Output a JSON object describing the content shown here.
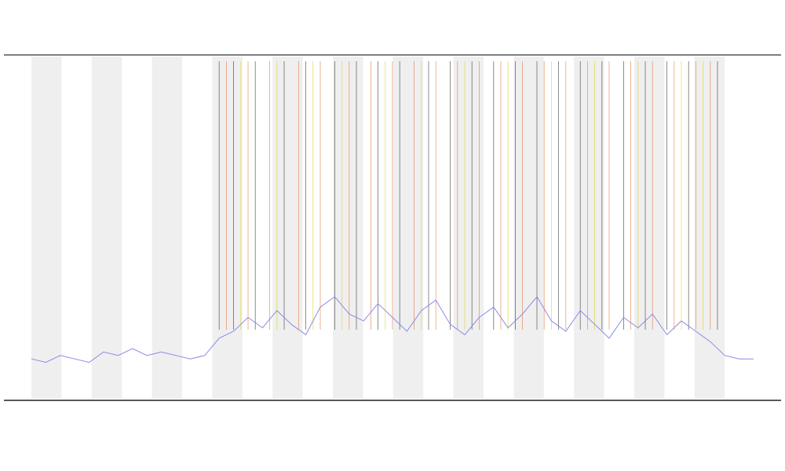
{
  "chart_data": {
    "type": "line",
    "x": [
      0,
      2,
      4,
      6,
      8,
      10,
      12,
      14,
      16,
      18,
      20,
      22,
      24,
      26,
      28,
      30,
      32,
      34,
      36,
      38,
      40,
      42,
      44,
      46,
      48,
      50,
      52,
      54,
      56,
      58,
      60,
      62,
      64,
      66,
      68,
      70,
      72,
      74,
      76,
      78,
      80,
      82,
      84,
      86,
      88,
      90,
      92,
      94,
      96,
      98,
      100
    ],
    "series": [
      {
        "color": "#8a8ae8",
        "values": [
          12,
          11,
          13,
          12,
          11,
          14,
          13,
          15,
          13,
          14,
          13,
          12,
          13,
          18,
          20,
          24,
          21,
          26,
          22,
          19,
          27,
          30,
          25,
          23,
          28,
          24,
          20,
          26,
          29,
          22,
          19,
          24,
          27,
          21,
          25,
          30,
          23,
          20,
          26,
          22,
          18,
          24,
          21,
          25,
          19,
          23,
          20,
          17,
          13,
          12,
          12
        ]
      }
    ],
    "events": [
      {
        "color": "#e8743b",
        "x": [
          27,
          30,
          33,
          37,
          40,
          44,
          47,
          50,
          53,
          56,
          59,
          62,
          65,
          68,
          71,
          74,
          77,
          80,
          83,
          86,
          89,
          92,
          94
        ]
      },
      {
        "color": "#333333",
        "x": [
          26,
          28,
          31,
          35,
          38,
          42,
          45,
          48,
          51,
          55,
          58,
          61,
          64,
          67,
          70,
          73,
          76,
          79,
          82,
          85,
          88,
          91,
          95
        ]
      },
      {
        "color": "#e0d020",
        "x": [
          29,
          34,
          39,
          43,
          49,
          54,
          60,
          66,
          72,
          78,
          84,
          90,
          93
        ]
      }
    ],
    "xlim": [
      0,
      100
    ],
    "ylim": [
      0,
      100
    ]
  }
}
